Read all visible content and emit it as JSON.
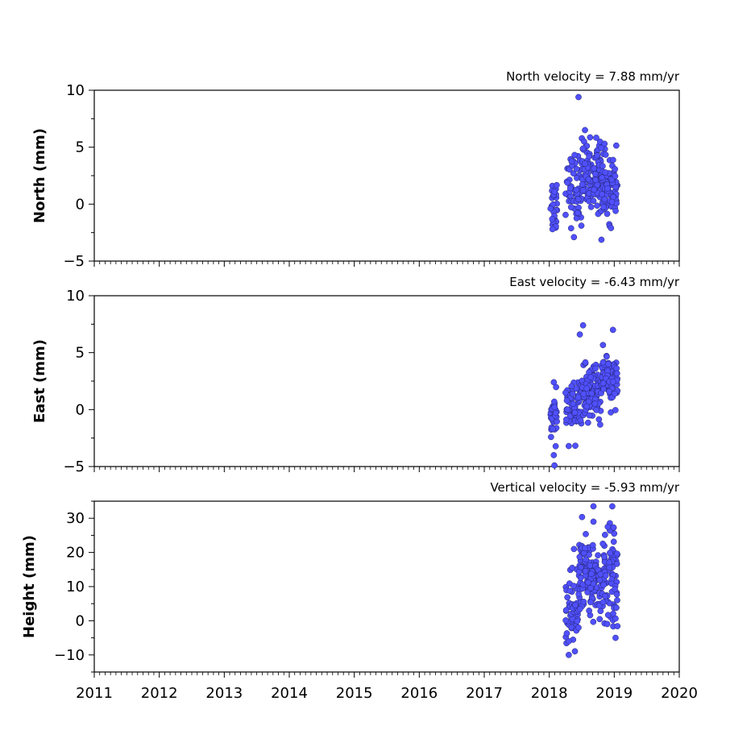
{
  "chart_data": [
    {
      "type": "scatter",
      "title": "North velocity = 7.88 mm/yr",
      "ylabel": "North (mm)",
      "xlim": [
        2011,
        2020
      ],
      "ylim": [
        -5,
        10
      ],
      "yticks": [
        -5,
        0,
        5,
        10
      ],
      "ytick_labels": [
        "−5",
        "0",
        "5",
        "10"
      ],
      "series": [
        {
          "clusters": [
            {
              "x0": 2018.02,
              "x1": 2018.12,
              "y": 0.0,
              "sd": 1.3,
              "n": 25
            },
            {
              "x0": 2018.25,
              "x1": 2018.5,
              "y": 1.5,
              "sd": 1.5,
              "n": 55
            },
            {
              "x0": 2018.5,
              "x1": 2018.8,
              "y": 2.6,
              "sd": 1.5,
              "n": 110
            },
            {
              "x0": 2018.8,
              "x1": 2019.05,
              "y": 1.4,
              "sd": 1.3,
              "n": 90
            }
          ],
          "points": [
            [
              2018.45,
              9.4
            ],
            [
              2018.55,
              6.5
            ],
            [
              2018.38,
              -2.9
            ],
            [
              2018.95,
              -2.1
            ],
            [
              2018.05,
              -2.2
            ],
            [
              2018.85,
              5.3
            ]
          ]
        }
      ]
    },
    {
      "type": "scatter",
      "title": "East velocity = -6.43 mm/yr",
      "ylabel": "East (mm)",
      "xlim": [
        2011,
        2020
      ],
      "ylim": [
        -5,
        10
      ],
      "yticks": [
        -5,
        0,
        5,
        10
      ],
      "ytick_labels": [
        "−5",
        "0",
        "5",
        "10"
      ],
      "series": [
        {
          "clusters": [
            {
              "x0": 2018.02,
              "x1": 2018.12,
              "y": -0.8,
              "sd": 1.0,
              "n": 30
            },
            {
              "x0": 2018.25,
              "x1": 2018.5,
              "y": 0.3,
              "sd": 1.2,
              "n": 60
            },
            {
              "x0": 2018.5,
              "x1": 2018.8,
              "y": 1.5,
              "sd": 1.1,
              "n": 110
            },
            {
              "x0": 2018.8,
              "x1": 2019.05,
              "y": 2.6,
              "sd": 1.0,
              "n": 90
            }
          ],
          "points": [
            [
              2018.52,
              7.4
            ],
            [
              2018.47,
              6.6
            ],
            [
              2018.98,
              7.0
            ],
            [
              2018.07,
              -4.0
            ],
            [
              2018.08,
              -4.9
            ],
            [
              2018.3,
              -3.2
            ],
            [
              2018.07,
              2.4
            ]
          ]
        }
      ]
    },
    {
      "type": "scatter",
      "title": "Vertical velocity = -5.93 mm/yr",
      "ylabel": "Height (mm)",
      "xlabel": "",
      "xlim": [
        2011,
        2020
      ],
      "ylim": [
        -15,
        35
      ],
      "yticks": [
        -10,
        0,
        10,
        20,
        30
      ],
      "ytick_labels": [
        "−10",
        "0",
        "10",
        "20",
        "30"
      ],
      "xticks": [
        2011,
        2012,
        2013,
        2014,
        2015,
        2016,
        2017,
        2018,
        2019,
        2020
      ],
      "xtick_labels": [
        "2011",
        "2012",
        "2013",
        "2014",
        "2015",
        "2016",
        "2017",
        "2018",
        "2019",
        "2020"
      ],
      "series": [
        {
          "clusters": [
            {
              "x0": 2018.25,
              "x1": 2018.45,
              "y": 3.0,
              "sd": 5.0,
              "n": 55
            },
            {
              "x0": 2018.45,
              "x1": 2018.75,
              "y": 13.0,
              "sd": 5.5,
              "n": 110
            },
            {
              "x0": 2018.75,
              "x1": 2019.05,
              "y": 12.0,
              "sd": 6.5,
              "n": 100
            }
          ],
          "points": [
            [
              2018.68,
              33.5
            ],
            [
              2018.97,
              33.5
            ],
            [
              2018.99,
              27.3
            ],
            [
              2018.3,
              -10.0
            ],
            [
              2019.02,
              -5.0
            ],
            [
              2018.3,
              -6.0
            ],
            [
              2018.38,
              21.0
            ],
            [
              2018.68,
              29.0
            ],
            [
              2018.9,
              27.5
            ],
            [
              2018.45,
              -2.0
            ]
          ]
        }
      ]
    }
  ],
  "style": {
    "marker_fill": "#5050ff",
    "marker_stroke": "#222266",
    "axis_color": "#000000"
  }
}
